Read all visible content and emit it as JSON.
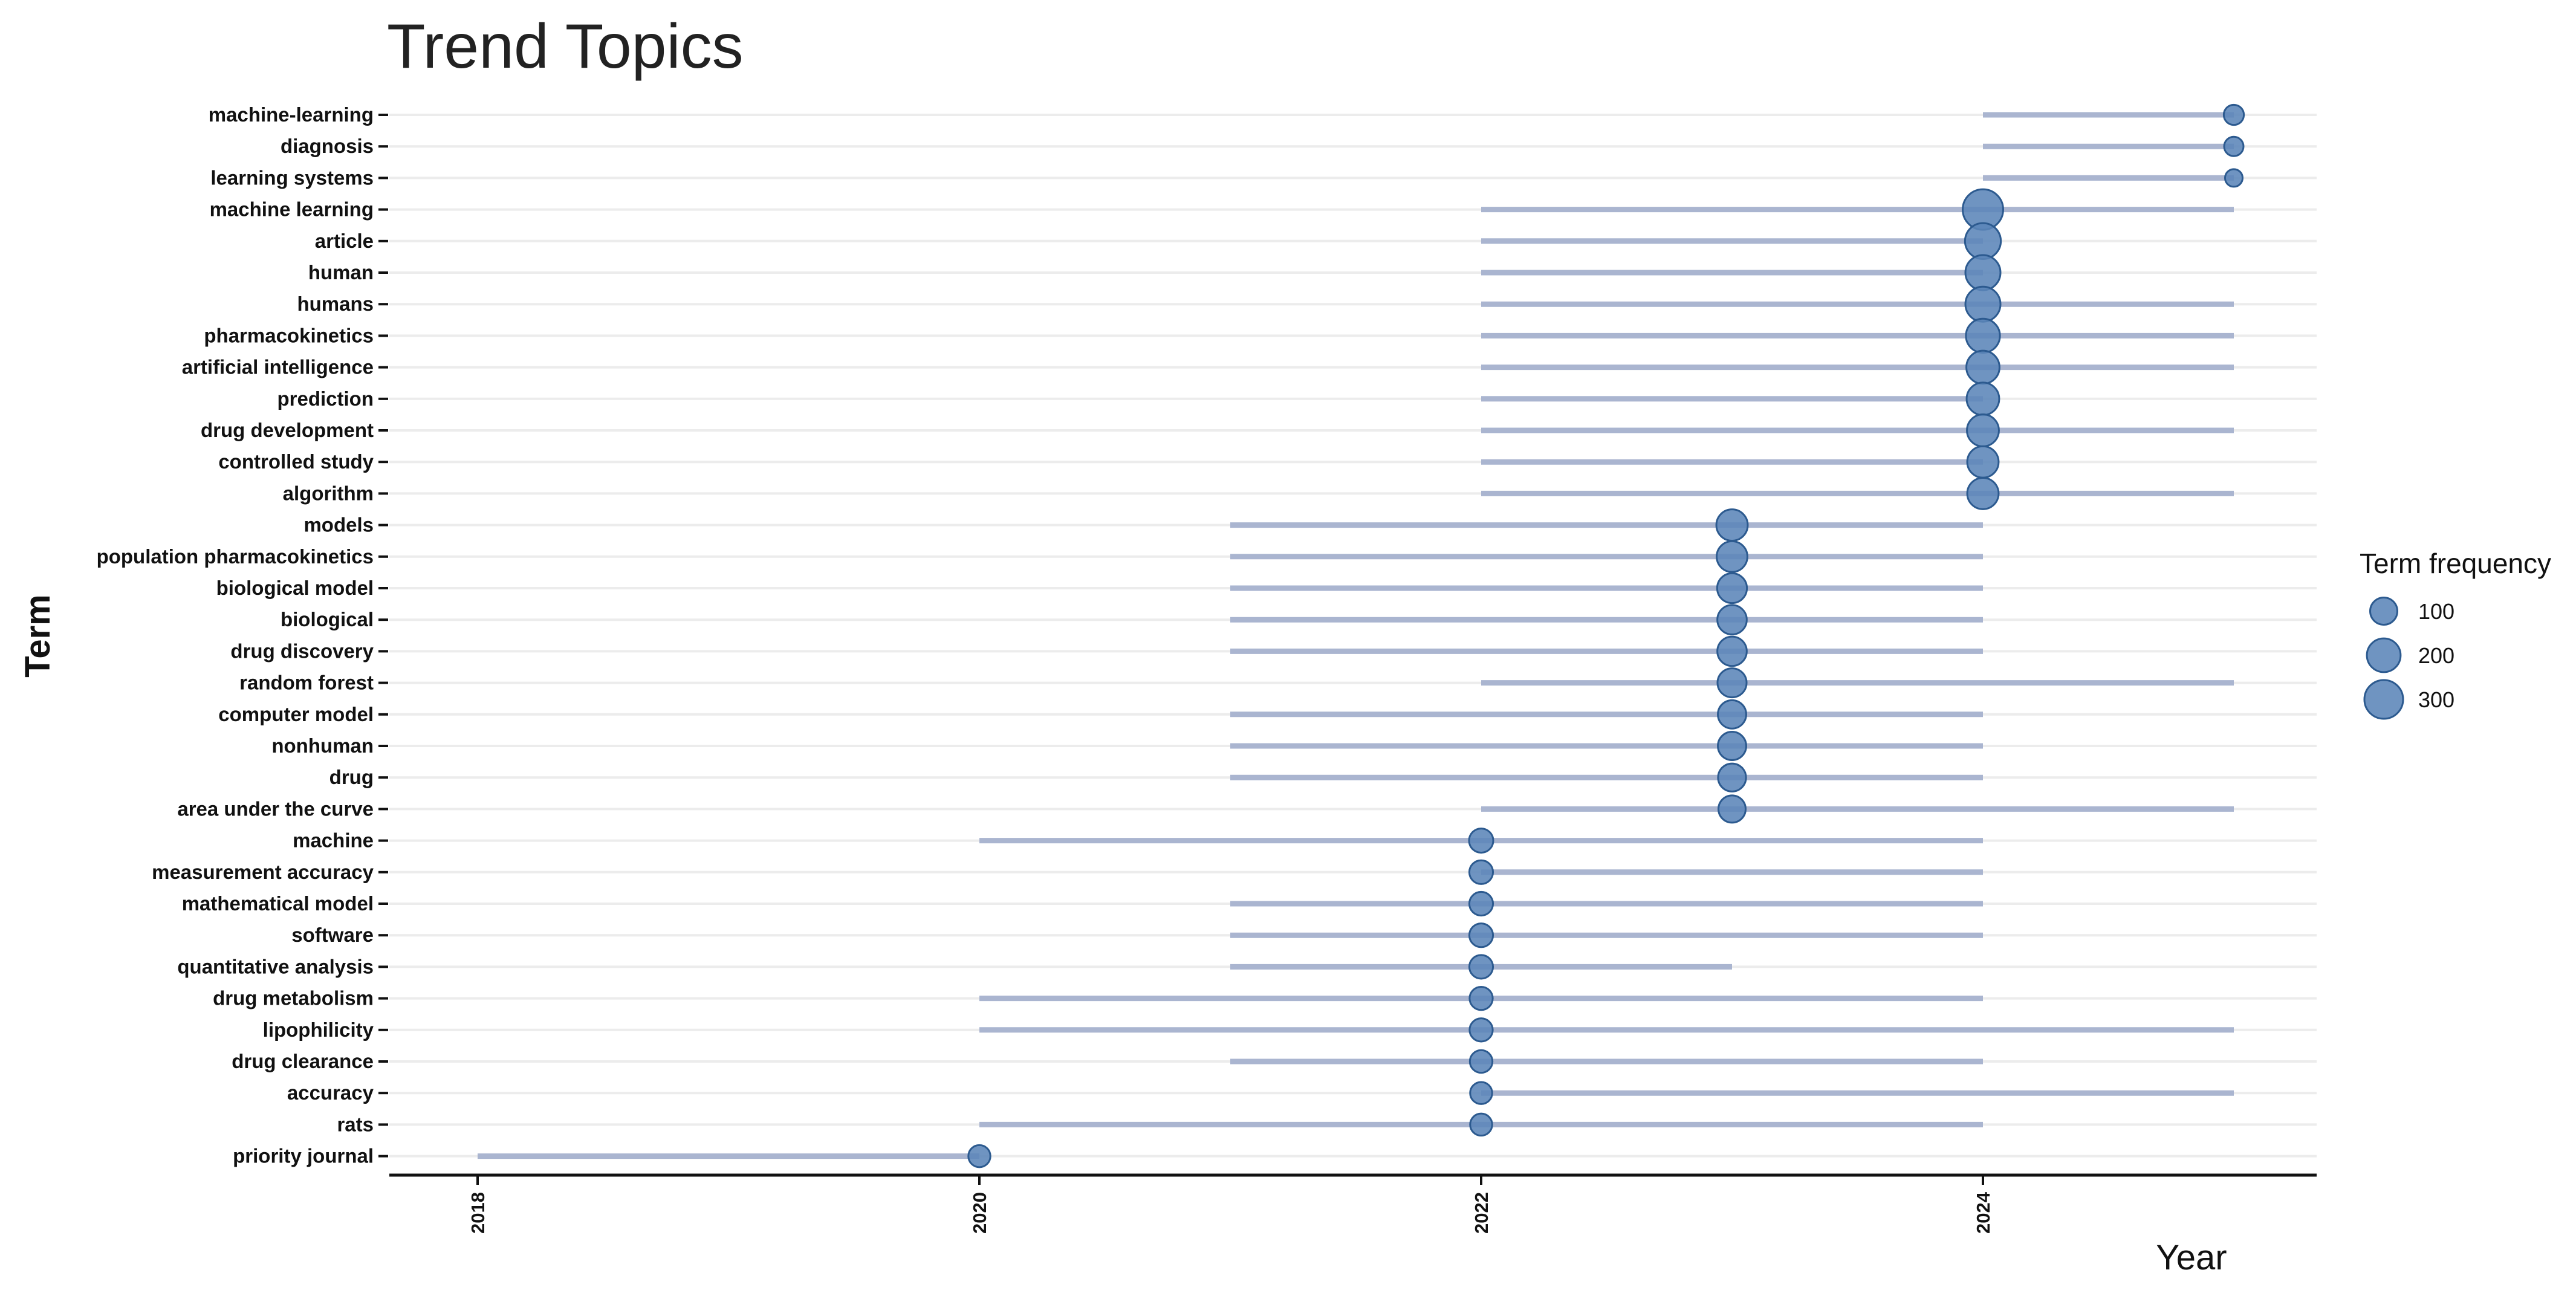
{
  "chart_data": {
    "type": "scatter",
    "title": "Trend Topics",
    "xlabel": "Year",
    "ylabel": "Term",
    "xlim": [
      2017.85,
      2025.7
    ],
    "x_ticks": [
      "2018",
      "2020",
      "2022",
      "2024"
    ],
    "grid": "horizontal",
    "legend": {
      "title": "Term frequency",
      "placement": "right",
      "sizes": [
        100,
        200,
        300
      ]
    },
    "colors": {
      "point_fill": "#5b85b8",
      "point_stroke": "#2c5a8f",
      "segment": "#aab5d0",
      "gridline": "#ececec",
      "axis": "#111111"
    },
    "terms": [
      {
        "term": "machine-learning",
        "start": 2024,
        "median": 2025,
        "end": 2025,
        "freq": 30
      },
      {
        "term": "diagnosis",
        "start": 2024,
        "median": 2025,
        "end": 2025,
        "freq": 25
      },
      {
        "term": "learning systems",
        "start": 2024,
        "median": 2025,
        "end": 2025,
        "freq": 15
      },
      {
        "term": "machine learning",
        "start": 2022,
        "median": 2024,
        "end": 2025,
        "freq": 340
      },
      {
        "term": "article",
        "start": 2022,
        "median": 2024,
        "end": 2024,
        "freq": 240
      },
      {
        "term": "human",
        "start": 2022,
        "median": 2024,
        "end": 2024,
        "freq": 225
      },
      {
        "term": "humans",
        "start": 2022,
        "median": 2024,
        "end": 2025,
        "freq": 225
      },
      {
        "term": "pharmacokinetics",
        "start": 2022,
        "median": 2024,
        "end": 2025,
        "freq": 205
      },
      {
        "term": "artificial intelligence",
        "start": 2022,
        "median": 2024,
        "end": 2025,
        "freq": 190
      },
      {
        "term": "prediction",
        "start": 2022,
        "median": 2024,
        "end": 2024,
        "freq": 180
      },
      {
        "term": "drug development",
        "start": 2022,
        "median": 2024,
        "end": 2025,
        "freq": 170
      },
      {
        "term": "controlled study",
        "start": 2022,
        "median": 2024,
        "end": 2024,
        "freq": 160
      },
      {
        "term": "algorithm",
        "start": 2022,
        "median": 2024,
        "end": 2025,
        "freq": 160
      },
      {
        "term": "models",
        "start": 2021,
        "median": 2023,
        "end": 2024,
        "freq": 160
      },
      {
        "term": "population pharmacokinetics",
        "start": 2021,
        "median": 2023,
        "end": 2024,
        "freq": 150
      },
      {
        "term": "biological model",
        "start": 2021,
        "median": 2023,
        "end": 2024,
        "freq": 135
      },
      {
        "term": "biological",
        "start": 2021,
        "median": 2023,
        "end": 2024,
        "freq": 130
      },
      {
        "term": "drug discovery",
        "start": 2021,
        "median": 2023,
        "end": 2024,
        "freq": 130
      },
      {
        "term": "random forest",
        "start": 2022,
        "median": 2023,
        "end": 2025,
        "freq": 125
      },
      {
        "term": "computer model",
        "start": 2021,
        "median": 2023,
        "end": 2024,
        "freq": 115
      },
      {
        "term": "nonhuman",
        "start": 2021,
        "median": 2023,
        "end": 2024,
        "freq": 115
      },
      {
        "term": "drug",
        "start": 2021,
        "median": 2023,
        "end": 2024,
        "freq": 110
      },
      {
        "term": "area under the curve",
        "start": 2022,
        "median": 2023,
        "end": 2025,
        "freq": 100
      },
      {
        "term": "machine",
        "start": 2020,
        "median": 2022,
        "end": 2024,
        "freq": 65
      },
      {
        "term": "measurement accuracy",
        "start": 2022,
        "median": 2022,
        "end": 2024,
        "freq": 60
      },
      {
        "term": "mathematical model",
        "start": 2021,
        "median": 2022,
        "end": 2024,
        "freq": 60
      },
      {
        "term": "software",
        "start": 2021,
        "median": 2022,
        "end": 2024,
        "freq": 60
      },
      {
        "term": "quantitative analysis",
        "start": 2021,
        "median": 2022,
        "end": 2023,
        "freq": 60
      },
      {
        "term": "drug metabolism",
        "start": 2020,
        "median": 2022,
        "end": 2024,
        "freq": 55
      },
      {
        "term": "lipophilicity",
        "start": 2020,
        "median": 2022,
        "end": 2025,
        "freq": 55
      },
      {
        "term": "drug clearance",
        "start": 2021,
        "median": 2022,
        "end": 2024,
        "freq": 50
      },
      {
        "term": "accuracy",
        "start": 2022,
        "median": 2022,
        "end": 2025,
        "freq": 45
      },
      {
        "term": "rats",
        "start": 2020,
        "median": 2022,
        "end": 2024,
        "freq": 45
      },
      {
        "term": "priority journal",
        "start": 2018,
        "median": 2020,
        "end": 2020,
        "freq": 45
      }
    ]
  }
}
